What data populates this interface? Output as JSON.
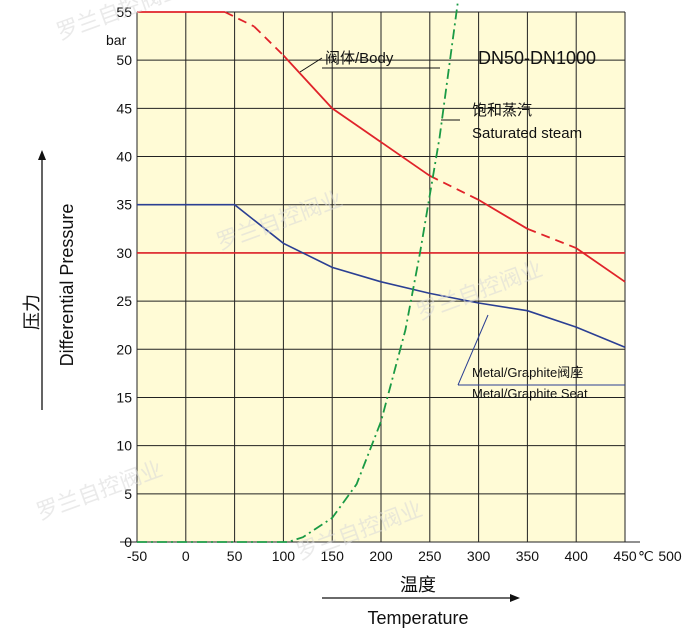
{
  "chart_data": {
    "type": "line",
    "x_ticks": [
      "-50",
      "0",
      "50",
      "100",
      "150",
      "200",
      "250",
      "300",
      "350",
      "400",
      "450",
      "500"
    ],
    "y_ticks": [
      "0",
      "5",
      "10",
      "15",
      "20",
      "25",
      "30",
      "35",
      "40",
      "45",
      "50",
      "55"
    ],
    "x_unit": "℃",
    "y_unit": "bar",
    "xlim": [
      -50,
      500
    ],
    "ylim": [
      0,
      55
    ],
    "grid": true,
    "xlabel_cn": "温度",
    "xlabel_en": "Temperature",
    "ylabel_cn": "压力",
    "ylabel_en": "Differential Pressure",
    "title": "DN50-DN1000",
    "series": [
      {
        "name": "阀体/Body",
        "color": "#e0232a",
        "style": "mixed-solid-dashed",
        "points": [
          [
            -50,
            55
          ],
          [
            40,
            55
          ],
          [
            70,
            53.5
          ],
          [
            100,
            50.5
          ],
          [
            150,
            45
          ],
          [
            200,
            41.5
          ],
          [
            250,
            38
          ],
          [
            300,
            35.5
          ],
          [
            350,
            32.5
          ],
          [
            400,
            30.5
          ],
          [
            450,
            27
          ]
        ]
      },
      {
        "name": "Body reference line",
        "color": "#e0232a",
        "style": "solid",
        "points": [
          [
            -50,
            30
          ],
          [
            450,
            30
          ]
        ]
      },
      {
        "name": "Metal/Graphite阀座 / Metal/Graphite Seat",
        "color": "#2b3f93",
        "style": "solid",
        "points": [
          [
            -50,
            35
          ],
          [
            50,
            35
          ],
          [
            100,
            31
          ],
          [
            150,
            28.5
          ],
          [
            200,
            27
          ],
          [
            250,
            25.8
          ],
          [
            300,
            24.8
          ],
          [
            350,
            24
          ],
          [
            400,
            22.3
          ],
          [
            450,
            20.2
          ]
        ]
      },
      {
        "name": "饱和蒸汽 / Saturated steam",
        "color": "#1a9a45",
        "style": "dash-dot",
        "points": [
          [
            -50,
            0
          ],
          [
            105,
            0
          ],
          [
            120,
            0.5
          ],
          [
            150,
            2.5
          ],
          [
            175,
            6
          ],
          [
            200,
            12.5
          ],
          [
            225,
            22
          ],
          [
            240,
            30
          ],
          [
            260,
            42
          ],
          [
            280,
            57
          ]
        ]
      }
    ],
    "annotations": {
      "body": "阀体/Body",
      "steam_cn": "饱和蒸汽",
      "steam_en": "Saturated steam",
      "seat_cn": "Metal/Graphite阀座",
      "seat_en": "Metal/Graphite Seat"
    }
  },
  "watermark": "罗兰自控阀业"
}
